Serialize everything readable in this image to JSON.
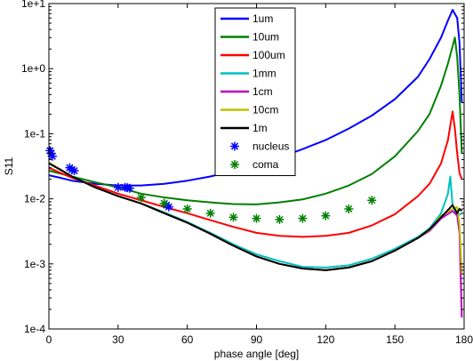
{
  "chart_data": {
    "type": "line",
    "title": "",
    "xlabel": "phase angle [deg]",
    "ylabel": "S11",
    "xlim": [
      0,
      180
    ],
    "ylim": [
      0.0001,
      10
    ],
    "yscale": "log",
    "xticks": [
      0,
      30,
      60,
      90,
      120,
      150,
      180
    ],
    "xtick_labels": [
      "0",
      "30",
      "60",
      "90",
      "120",
      "150",
      "180"
    ],
    "yticks": [
      0.0001,
      0.001,
      0.01,
      0.1,
      1,
      10
    ],
    "ytick_labels": [
      "1e-4",
      "1e-3",
      "1e-2",
      "1e-1",
      "1e+0",
      "1e+1"
    ],
    "grid": false,
    "legend_position": "top-center",
    "series": [
      {
        "name": "1um",
        "color": "#0000ff",
        "style": "line",
        "points": [
          [
            0,
            0.023
          ],
          [
            5,
            0.021
          ],
          [
            10,
            0.019
          ],
          [
            20,
            0.017
          ],
          [
            30,
            0.016
          ],
          [
            40,
            0.016
          ],
          [
            50,
            0.017
          ],
          [
            60,
            0.019
          ],
          [
            70,
            0.022
          ],
          [
            80,
            0.027
          ],
          [
            90,
            0.033
          ],
          [
            100,
            0.043
          ],
          [
            110,
            0.058
          ],
          [
            120,
            0.08
          ],
          [
            130,
            0.12
          ],
          [
            140,
            0.19
          ],
          [
            150,
            0.34
          ],
          [
            160,
            0.75
          ],
          [
            165,
            1.4
          ],
          [
            170,
            3.0
          ],
          [
            173,
            5.5
          ],
          [
            175,
            8.0
          ],
          [
            177,
            6.0
          ],
          [
            178,
            2.5
          ],
          [
            179,
            0.3
          ]
        ]
      },
      {
        "name": "10um",
        "color": "#007f00",
        "style": "line",
        "points": [
          [
            0,
            0.027
          ],
          [
            10,
            0.022
          ],
          [
            20,
            0.018
          ],
          [
            30,
            0.015
          ],
          [
            40,
            0.012
          ],
          [
            50,
            0.0105
          ],
          [
            60,
            0.0095
          ],
          [
            70,
            0.0088
          ],
          [
            80,
            0.0083
          ],
          [
            90,
            0.0082
          ],
          [
            100,
            0.0088
          ],
          [
            110,
            0.0098
          ],
          [
            120,
            0.012
          ],
          [
            130,
            0.016
          ],
          [
            140,
            0.024
          ],
          [
            150,
            0.045
          ],
          [
            160,
            0.11
          ],
          [
            165,
            0.2
          ],
          [
            170,
            0.55
          ],
          [
            173,
            1.2
          ],
          [
            175,
            2.2
          ],
          [
            176,
            3.0
          ],
          [
            177,
            1.5
          ],
          [
            178,
            0.4
          ],
          [
            179,
            0.05
          ]
        ]
      },
      {
        "name": "100um",
        "color": "#ff0000",
        "style": "line",
        "points": [
          [
            0,
            0.03
          ],
          [
            5,
            0.025
          ],
          [
            10,
            0.021
          ],
          [
            20,
            0.016
          ],
          [
            30,
            0.012
          ],
          [
            40,
            0.0095
          ],
          [
            50,
            0.0075
          ],
          [
            60,
            0.006
          ],
          [
            70,
            0.0047
          ],
          [
            80,
            0.0037
          ],
          [
            90,
            0.003
          ],
          [
            100,
            0.0027
          ],
          [
            110,
            0.0026
          ],
          [
            120,
            0.0027
          ],
          [
            130,
            0.003
          ],
          [
            140,
            0.0039
          ],
          [
            150,
            0.0058
          ],
          [
            160,
            0.011
          ],
          [
            165,
            0.017
          ],
          [
            170,
            0.035
          ],
          [
            173,
            0.08
          ],
          [
            175,
            0.22
          ],
          [
            176,
            0.12
          ],
          [
            177,
            0.05
          ],
          [
            178,
            0.025
          ],
          [
            179,
            0.02
          ]
        ]
      },
      {
        "name": "1mm",
        "color": "#00bfbf",
        "style": "line",
        "points": [
          [
            0,
            0.035
          ],
          [
            5,
            0.028
          ],
          [
            10,
            0.022
          ],
          [
            20,
            0.015
          ],
          [
            30,
            0.011
          ],
          [
            40,
            0.0085
          ],
          [
            50,
            0.0062
          ],
          [
            60,
            0.0044
          ],
          [
            70,
            0.003
          ],
          [
            80,
            0.002
          ],
          [
            90,
            0.0014
          ],
          [
            100,
            0.0011
          ],
          [
            110,
            0.0009
          ],
          [
            120,
            0.00088
          ],
          [
            130,
            0.00095
          ],
          [
            140,
            0.0012
          ],
          [
            150,
            0.0017
          ],
          [
            160,
            0.0026
          ],
          [
            165,
            0.0035
          ],
          [
            170,
            0.006
          ],
          [
            173,
            0.012
          ],
          [
            174,
            0.022
          ],
          [
            175,
            0.008
          ],
          [
            177,
            0.0055
          ],
          [
            179,
            0.006
          ]
        ]
      },
      {
        "name": "1cm",
        "color": "#bf00bf",
        "style": "line",
        "points": [
          [
            0,
            0.036
          ],
          [
            5,
            0.028
          ],
          [
            10,
            0.022
          ],
          [
            20,
            0.015
          ],
          [
            30,
            0.011
          ],
          [
            40,
            0.0085
          ],
          [
            50,
            0.006
          ],
          [
            60,
            0.0043
          ],
          [
            70,
            0.0029
          ],
          [
            80,
            0.0019
          ],
          [
            90,
            0.0013
          ],
          [
            100,
            0.001
          ],
          [
            110,
            0.00085
          ],
          [
            120,
            0.0008
          ],
          [
            130,
            0.00088
          ],
          [
            140,
            0.0011
          ],
          [
            150,
            0.0016
          ],
          [
            160,
            0.0025
          ],
          [
            165,
            0.0032
          ],
          [
            170,
            0.005
          ],
          [
            175,
            0.0065
          ],
          [
            177,
            0.0055
          ],
          [
            178,
            0.003
          ],
          [
            179,
            0.00015
          ]
        ]
      },
      {
        "name": "10cm",
        "color": "#bfbf00",
        "style": "line",
        "points": [
          [
            0,
            0.036
          ],
          [
            5,
            0.028
          ],
          [
            10,
            0.022
          ],
          [
            20,
            0.015
          ],
          [
            30,
            0.011
          ],
          [
            40,
            0.0085
          ],
          [
            50,
            0.006
          ],
          [
            60,
            0.0043
          ],
          [
            70,
            0.0029
          ],
          [
            80,
            0.0019
          ],
          [
            90,
            0.0013
          ],
          [
            100,
            0.001
          ],
          [
            110,
            0.00085
          ],
          [
            120,
            0.0008
          ],
          [
            130,
            0.00088
          ],
          [
            140,
            0.0011
          ],
          [
            150,
            0.0016
          ],
          [
            160,
            0.0025
          ],
          [
            165,
            0.0033
          ],
          [
            170,
            0.0055
          ],
          [
            175,
            0.007
          ],
          [
            177,
            0.0075
          ],
          [
            178,
            0.004
          ],
          [
            179,
            0.0007
          ]
        ]
      },
      {
        "name": "1m",
        "color": "#000000",
        "style": "line",
        "points": [
          [
            0,
            0.035
          ],
          [
            5,
            0.028
          ],
          [
            10,
            0.022
          ],
          [
            20,
            0.015
          ],
          [
            30,
            0.011
          ],
          [
            40,
            0.0085
          ],
          [
            50,
            0.006
          ],
          [
            60,
            0.0043
          ],
          [
            70,
            0.0029
          ],
          [
            80,
            0.0019
          ],
          [
            90,
            0.0013
          ],
          [
            100,
            0.001
          ],
          [
            110,
            0.00085
          ],
          [
            120,
            0.0008
          ],
          [
            130,
            0.00088
          ],
          [
            140,
            0.0011
          ],
          [
            150,
            0.0016
          ],
          [
            160,
            0.0025
          ],
          [
            165,
            0.0034
          ],
          [
            170,
            0.0052
          ],
          [
            175,
            0.008
          ],
          [
            177,
            0.006
          ],
          [
            178,
            0.007
          ],
          [
            179,
            0.0065
          ]
        ]
      },
      {
        "name": "nucleus",
        "color": "#0000ff",
        "style": "marker",
        "points": [
          [
            0.5,
            0.055
          ],
          [
            1,
            0.05
          ],
          [
            1.5,
            0.045
          ],
          [
            9,
            0.03
          ],
          [
            10,
            0.028
          ],
          [
            11,
            0.027
          ],
          [
            30,
            0.015
          ],
          [
            33,
            0.015
          ],
          [
            34,
            0.0148
          ],
          [
            35,
            0.0145
          ],
          [
            50,
            0.0085
          ],
          [
            51,
            0.008
          ],
          [
            52,
            0.0075
          ]
        ]
      },
      {
        "name": "coma",
        "color": "#007f00",
        "style": "marker",
        "points": [
          [
            40,
            0.0105
          ],
          [
            50,
            0.0085
          ],
          [
            60,
            0.007
          ],
          [
            70,
            0.006
          ],
          [
            80,
            0.0052
          ],
          [
            90,
            0.005
          ],
          [
            100,
            0.0048
          ],
          [
            110,
            0.005
          ],
          [
            120,
            0.0055
          ],
          [
            130,
            0.007
          ],
          [
            140,
            0.0095
          ]
        ]
      }
    ]
  }
}
